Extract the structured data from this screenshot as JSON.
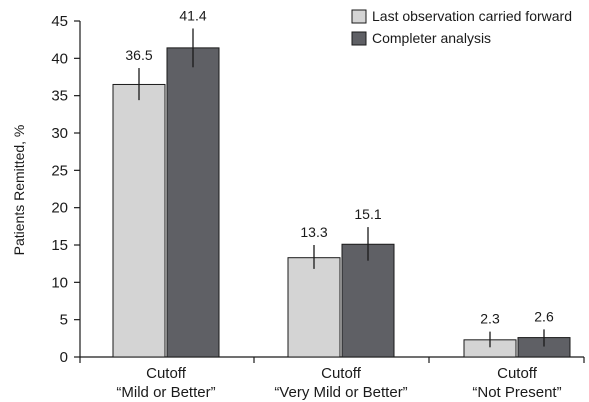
{
  "chart_data": {
    "type": "bar",
    "ylabel": "Patients Remitted, %",
    "ylim": [
      0,
      45
    ],
    "yticks": [
      0,
      5,
      10,
      15,
      20,
      25,
      30,
      35,
      40,
      45
    ],
    "grid": false,
    "legend_position": "top-right",
    "categories": [
      [
        "Cutoff",
        "“Mild or Better”"
      ],
      [
        "Cutoff",
        "“Very Mild or Better”"
      ],
      [
        "Cutoff",
        "“Not Present”"
      ]
    ],
    "series": [
      {
        "name": "Last observation carried forward",
        "color": "#d4d4d4",
        "values": [
          36.5,
          13.3,
          2.3
        ],
        "error_low": [
          34.4,
          11.8,
          1.3
        ],
        "error_high": [
          38.7,
          15.0,
          3.4
        ],
        "labels": [
          "36.5",
          "13.3",
          "2.3"
        ]
      },
      {
        "name": "Completer analysis",
        "color": "#5f6065",
        "values": [
          41.4,
          15.1,
          2.6
        ],
        "error_low": [
          38.8,
          12.9,
          1.4
        ],
        "error_high": [
          44.0,
          17.4,
          3.7
        ],
        "labels": [
          "41.4",
          "15.1",
          "2.6"
        ]
      }
    ]
  }
}
